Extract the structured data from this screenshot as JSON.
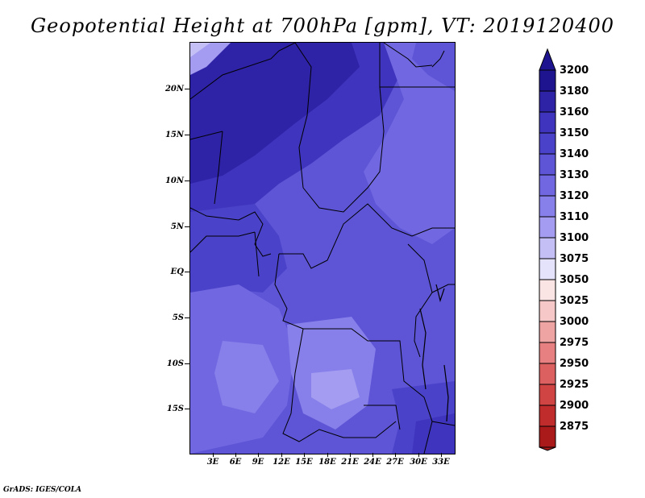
{
  "title": "Geopotential Height at 700hPa [gpm], VT: 2019120400",
  "credit": "GrADS: IGES/COLA",
  "map": {
    "lat_labels": [
      "20N",
      "15N",
      "10N",
      "5N",
      "EQ",
      "5S",
      "10S",
      "15S"
    ],
    "lon_labels": [
      "3E",
      "6E",
      "9E",
      "12E",
      "15E",
      "18E",
      "21E",
      "24E",
      "27E",
      "30E",
      "33E"
    ]
  },
  "colorbar": {
    "levels": [
      "3200",
      "3180",
      "3160",
      "3150",
      "3140",
      "3130",
      "3120",
      "3110",
      "3100",
      "3075",
      "3050",
      "3025",
      "3000",
      "2975",
      "2950",
      "2925",
      "2900",
      "2875"
    ],
    "colors": [
      "#1e1490",
      "#2e22a6",
      "#3f34bd",
      "#4a42c8",
      "#5d54d6",
      "#7168e1",
      "#877fea",
      "#a39cf0",
      "#c4c0f6",
      "#e5e3fb",
      "#fbe4e4",
      "#f6c8c8",
      "#efa4a4",
      "#e78181",
      "#dd6060",
      "#d14444",
      "#c02c2c",
      "#aa1a1a"
    ],
    "top_arrow_color": "#1e1490",
    "bottom_arrow_color": "#aa1a1a"
  }
}
